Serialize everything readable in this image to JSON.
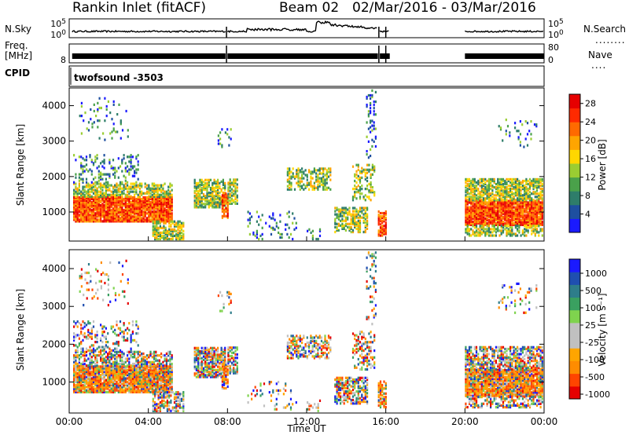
{
  "header": {
    "station": "Rankin Inlet (fitACF)",
    "beam": "Beam 02",
    "date_range": "02/Mar/2016 - 03/Mar/2016"
  },
  "left_labels": {
    "nsky": "N.Sky",
    "freq_line1": "Freq.",
    "freq_line2": "[MHz]",
    "cpid": "CPID"
  },
  "right_labels": {
    "nsearch": "N.Search",
    "nave": "Nave"
  },
  "cpid_text": "twofsound -3503",
  "strips": [
    {
      "id": "nsky",
      "left_ticks": [
        "10^5",
        "10^0"
      ],
      "right_ticks": [
        "10^5",
        "10^0"
      ]
    },
    {
      "id": "freq",
      "left_ticks": [
        "",
        "8"
      ],
      "right_ticks": [
        "80",
        "0"
      ]
    }
  ],
  "colors": {
    "power_scale": [
      "#1a1aff",
      "#1e4fa0",
      "#2e7d6a",
      "#4aa14a",
      "#9acd32",
      "#ffd700",
      "#ffa500",
      "#ff6a00",
      "#ff2a00",
      "#e60000"
    ],
    "velocity_scale": [
      "#e60000",
      "#ff4500",
      "#ff8c00",
      "#ffa500",
      "#c0c0c0",
      "#c0c0c0",
      "#7fd34e",
      "#3aa060",
      "#2e7d8a",
      "#1f4fb0",
      "#1a1aff"
    ]
  },
  "chart_data": [
    {
      "type": "heatmap",
      "panel": "power",
      "ylabel": "Slant Range [km]",
      "y_ticks": [
        "1000",
        "2000",
        "3000",
        "4000"
      ],
      "ylim": [
        180,
        4500
      ],
      "colorbar_label": "Power [dB]",
      "colorbar_ticks": [
        "4",
        "8",
        "12",
        "16",
        "20",
        "24",
        "28"
      ],
      "colorbar_range": [
        0,
        30
      ]
    },
    {
      "type": "heatmap",
      "panel": "velocity",
      "ylabel": "Slant Range [km]",
      "y_ticks": [
        "1000",
        "2000",
        "3000",
        "4000"
      ],
      "ylim": [
        180,
        4500
      ],
      "colorbar_label": "Velocity [m s⁻¹]",
      "colorbar_ticks": [
        "1000",
        "500",
        "100",
        "25",
        "-25",
        "-100",
        "-500",
        "-1000"
      ],
      "colorbar_range": [
        -1000,
        1000
      ]
    }
  ],
  "x_axis": {
    "ticks": [
      "00:00",
      "04:00",
      "08:00",
      "12:00",
      "16:00",
      "20:00",
      "00:00"
    ],
    "label": "Time UT",
    "range_hours": [
      0,
      24
    ]
  }
}
